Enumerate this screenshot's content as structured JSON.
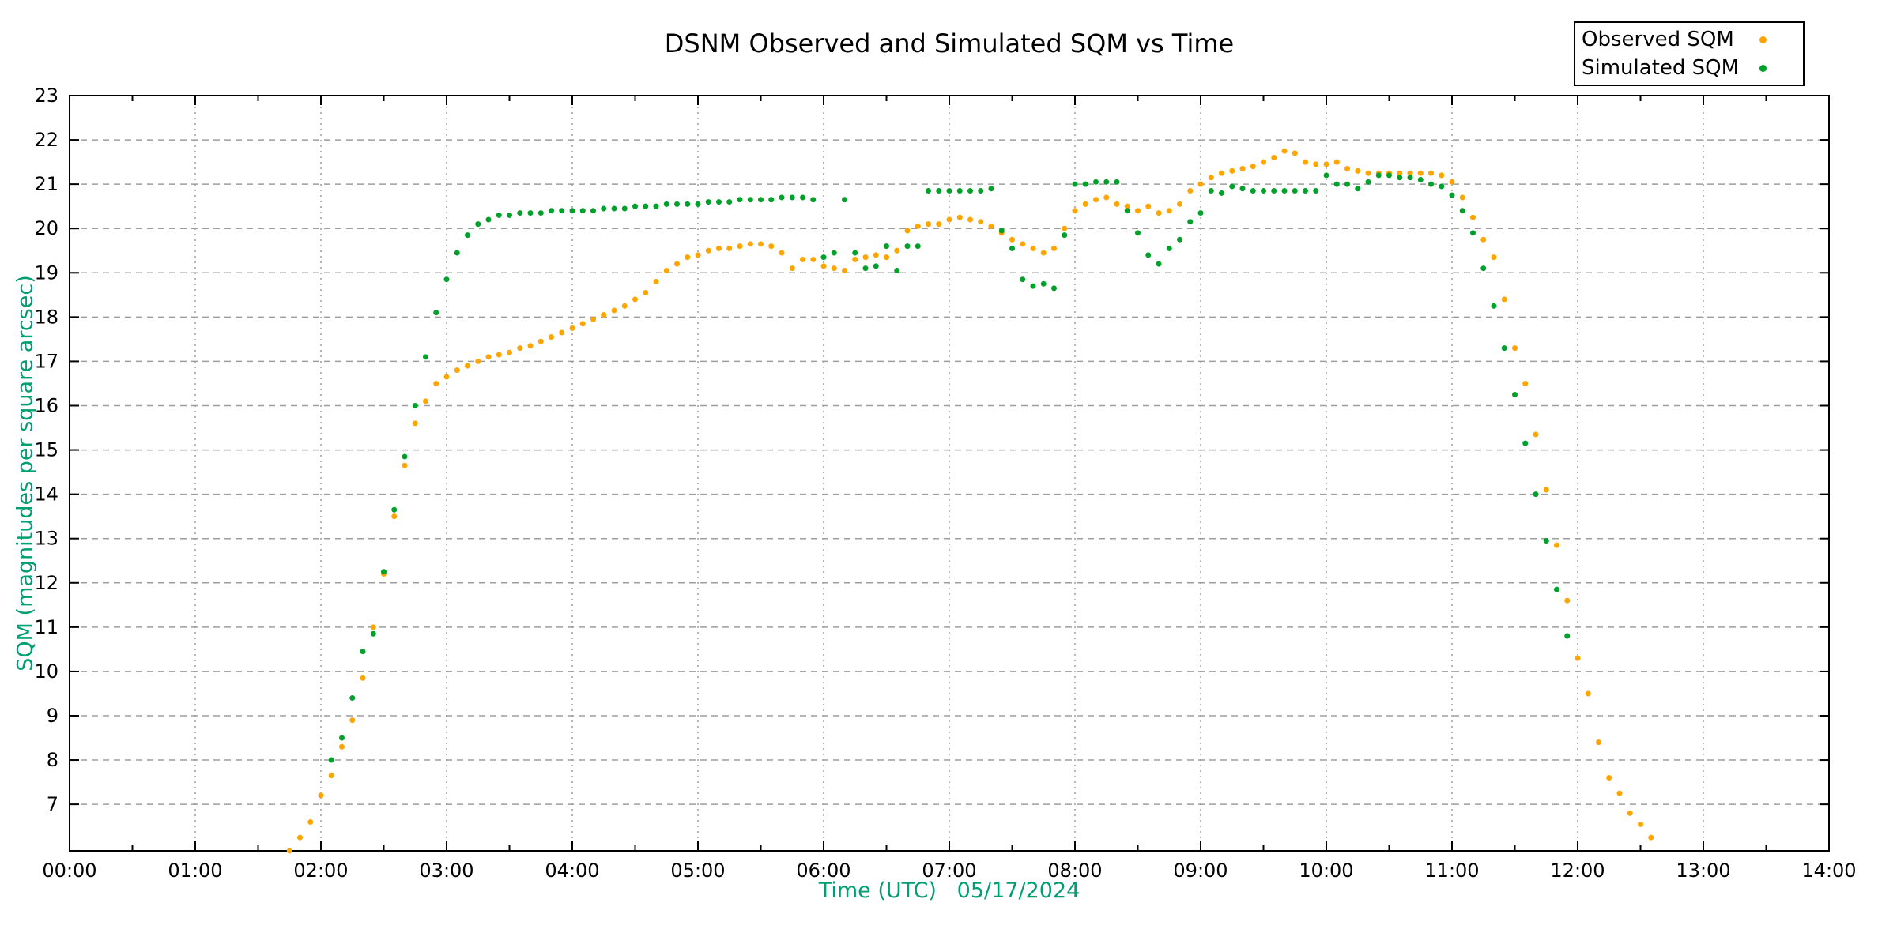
{
  "title": "DSNM Observed and Simulated SQM vs Time",
  "colors": {
    "observed": "#ffa500",
    "simulated": "#00a12b",
    "axis_label": "#009e73",
    "grid": "#9e9e9e",
    "border": "#000000",
    "background": "#ffffff"
  },
  "legend": {
    "entries": [
      {
        "label": "Observed SQM",
        "series": "observed"
      },
      {
        "label": "Simulated SQM",
        "series": "simulated"
      }
    ]
  },
  "axes": {
    "x": {
      "label": "Time (UTC)   05/17/2024",
      "tick_labels": [
        "00:00",
        "01:00",
        "02:00",
        "03:00",
        "04:00",
        "05:00",
        "06:00",
        "07:00",
        "08:00",
        "09:00",
        "10:00",
        "11:00",
        "12:00",
        "13:00",
        "14:00"
      ],
      "minor_tick_every_minutes": 30
    },
    "y": {
      "label": "SQM (magnitudes per square arcsec)",
      "ticks": [
        7,
        8,
        9,
        10,
        11,
        12,
        13,
        14,
        15,
        16,
        17,
        18,
        19,
        20,
        21,
        22,
        23
      ]
    }
  },
  "chart_data": {
    "type": "scatter",
    "title": "DSNM Observed and Simulated SQM vs Time",
    "xlabel": "Time (UTC)   05/17/2024",
    "ylabel": "SQM (magnitudes per square arcsec)",
    "xlim_hours": [
      0,
      14
    ],
    "ylim": [
      5.95,
      23
    ],
    "grid": true,
    "legend_position": "top-right-outside",
    "series": [
      {
        "name": "Observed SQM",
        "key": "observed",
        "color": "#ffa500",
        "marker": "dot",
        "points": [
          [
            "01:45",
            5.95
          ],
          [
            "01:50",
            6.25
          ],
          [
            "01:55",
            6.6
          ],
          [
            "02:00",
            7.2
          ],
          [
            "02:05",
            7.65
          ],
          [
            "02:10",
            8.3
          ],
          [
            "02:15",
            8.9
          ],
          [
            "02:20",
            9.85
          ],
          [
            "02:25",
            11.0
          ],
          [
            "02:30",
            12.2
          ],
          [
            "02:35",
            13.5
          ],
          [
            "02:40",
            14.65
          ],
          [
            "02:45",
            15.6
          ],
          [
            "02:50",
            16.1
          ],
          [
            "02:55",
            16.5
          ],
          [
            "03:00",
            16.65
          ],
          [
            "03:05",
            16.8
          ],
          [
            "03:10",
            16.9
          ],
          [
            "03:15",
            17.0
          ],
          [
            "03:20",
            17.1
          ],
          [
            "03:25",
            17.15
          ],
          [
            "03:30",
            17.2
          ],
          [
            "03:35",
            17.3
          ],
          [
            "03:40",
            17.35
          ],
          [
            "03:45",
            17.45
          ],
          [
            "03:50",
            17.55
          ],
          [
            "03:55",
            17.65
          ],
          [
            "04:00",
            17.75
          ],
          [
            "04:05",
            17.85
          ],
          [
            "04:10",
            17.95
          ],
          [
            "04:15",
            18.05
          ],
          [
            "04:20",
            18.15
          ],
          [
            "04:25",
            18.25
          ],
          [
            "04:30",
            18.4
          ],
          [
            "04:35",
            18.55
          ],
          [
            "04:40",
            18.8
          ],
          [
            "04:45",
            19.05
          ],
          [
            "04:50",
            19.2
          ],
          [
            "04:55",
            19.35
          ],
          [
            "05:00",
            19.4
          ],
          [
            "05:05",
            19.5
          ],
          [
            "05:10",
            19.55
          ],
          [
            "05:15",
            19.55
          ],
          [
            "05:20",
            19.6
          ],
          [
            "05:25",
            19.65
          ],
          [
            "05:30",
            19.65
          ],
          [
            "05:35",
            19.6
          ],
          [
            "05:40",
            19.45
          ],
          [
            "05:45",
            19.1
          ],
          [
            "05:50",
            19.3
          ],
          [
            "05:55",
            19.3
          ],
          [
            "06:00",
            19.15
          ],
          [
            "06:05",
            19.1
          ],
          [
            "06:10",
            19.05
          ],
          [
            "06:15",
            19.3
          ],
          [
            "06:20",
            19.35
          ],
          [
            "06:25",
            19.4
          ],
          [
            "06:30",
            19.35
          ],
          [
            "06:35",
            19.5
          ],
          [
            "06:40",
            19.95
          ],
          [
            "06:45",
            20.05
          ],
          [
            "06:50",
            20.1
          ],
          [
            "06:55",
            20.1
          ],
          [
            "07:00",
            20.2
          ],
          [
            "07:05",
            20.25
          ],
          [
            "07:10",
            20.2
          ],
          [
            "07:15",
            20.15
          ],
          [
            "07:20",
            20.05
          ],
          [
            "07:25",
            19.9
          ],
          [
            "07:30",
            19.75
          ],
          [
            "07:35",
            19.65
          ],
          [
            "07:40",
            19.55
          ],
          [
            "07:45",
            19.45
          ],
          [
            "07:50",
            19.55
          ],
          [
            "07:55",
            20.0
          ],
          [
            "08:00",
            20.4
          ],
          [
            "08:05",
            20.55
          ],
          [
            "08:10",
            20.65
          ],
          [
            "08:15",
            20.7
          ],
          [
            "08:20",
            20.55
          ],
          [
            "08:25",
            20.5
          ],
          [
            "08:30",
            20.4
          ],
          [
            "08:35",
            20.5
          ],
          [
            "08:40",
            20.35
          ],
          [
            "08:45",
            20.4
          ],
          [
            "08:50",
            20.55
          ],
          [
            "08:55",
            20.85
          ],
          [
            "09:00",
            21.0
          ],
          [
            "09:05",
            21.15
          ],
          [
            "09:10",
            21.25
          ],
          [
            "09:15",
            21.3
          ],
          [
            "09:20",
            21.35
          ],
          [
            "09:25",
            21.4
          ],
          [
            "09:30",
            21.5
          ],
          [
            "09:35",
            21.6
          ],
          [
            "09:40",
            21.75
          ],
          [
            "09:45",
            21.7
          ],
          [
            "09:50",
            21.5
          ],
          [
            "09:55",
            21.45
          ],
          [
            "10:00",
            21.45
          ],
          [
            "10:05",
            21.5
          ],
          [
            "10:10",
            21.35
          ],
          [
            "10:15",
            21.3
          ],
          [
            "10:20",
            21.25
          ],
          [
            "10:25",
            21.25
          ],
          [
            "10:30",
            21.25
          ],
          [
            "10:35",
            21.25
          ],
          [
            "10:40",
            21.25
          ],
          [
            "10:45",
            21.25
          ],
          [
            "10:50",
            21.25
          ],
          [
            "10:55",
            21.2
          ],
          [
            "11:00",
            21.05
          ],
          [
            "11:05",
            20.7
          ],
          [
            "11:10",
            20.25
          ],
          [
            "11:15",
            19.75
          ],
          [
            "11:20",
            19.35
          ],
          [
            "11:25",
            18.4
          ],
          [
            "11:30",
            17.3
          ],
          [
            "11:35",
            16.5
          ],
          [
            "11:40",
            15.35
          ],
          [
            "11:45",
            14.1
          ],
          [
            "11:50",
            12.85
          ],
          [
            "11:55",
            11.6
          ],
          [
            "12:00",
            10.3
          ],
          [
            "12:05",
            9.5
          ],
          [
            "12:10",
            8.4
          ],
          [
            "12:15",
            7.6
          ],
          [
            "12:20",
            7.25
          ],
          [
            "12:25",
            6.8
          ],
          [
            "12:30",
            6.55
          ],
          [
            "12:35",
            6.25
          ]
        ]
      },
      {
        "name": "Simulated SQM",
        "key": "simulated",
        "color": "#00a12b",
        "marker": "dot",
        "points": [
          [
            "02:05",
            8.0
          ],
          [
            "02:10",
            8.5
          ],
          [
            "02:15",
            9.4
          ],
          [
            "02:20",
            10.45
          ],
          [
            "02:25",
            10.85
          ],
          [
            "02:30",
            12.25
          ],
          [
            "02:35",
            13.65
          ],
          [
            "02:40",
            14.85
          ],
          [
            "02:45",
            16.0
          ],
          [
            "02:50",
            17.1
          ],
          [
            "02:55",
            18.1
          ],
          [
            "03:00",
            18.85
          ],
          [
            "03:05",
            19.45
          ],
          [
            "03:10",
            19.85
          ],
          [
            "03:15",
            20.1
          ],
          [
            "03:20",
            20.2
          ],
          [
            "03:25",
            20.3
          ],
          [
            "03:30",
            20.3
          ],
          [
            "03:35",
            20.35
          ],
          [
            "03:40",
            20.35
          ],
          [
            "03:45",
            20.35
          ],
          [
            "03:50",
            20.4
          ],
          [
            "03:55",
            20.4
          ],
          [
            "04:00",
            20.4
          ],
          [
            "04:05",
            20.4
          ],
          [
            "04:10",
            20.4
          ],
          [
            "04:15",
            20.45
          ],
          [
            "04:20",
            20.45
          ],
          [
            "04:25",
            20.45
          ],
          [
            "04:30",
            20.5
          ],
          [
            "04:35",
            20.5
          ],
          [
            "04:40",
            20.5
          ],
          [
            "04:45",
            20.55
          ],
          [
            "04:50",
            20.55
          ],
          [
            "04:55",
            20.55
          ],
          [
            "05:00",
            20.55
          ],
          [
            "05:05",
            20.6
          ],
          [
            "05:10",
            20.6
          ],
          [
            "05:15",
            20.6
          ],
          [
            "05:20",
            20.65
          ],
          [
            "05:25",
            20.65
          ],
          [
            "05:30",
            20.65
          ],
          [
            "05:35",
            20.65
          ],
          [
            "05:40",
            20.7
          ],
          [
            "05:45",
            20.7
          ],
          [
            "05:50",
            20.7
          ],
          [
            "05:55",
            20.65
          ],
          [
            "06:00",
            19.35
          ],
          [
            "06:05",
            19.45
          ],
          [
            "06:10",
            20.65
          ],
          [
            "06:15",
            19.45
          ],
          [
            "06:20",
            19.1
          ],
          [
            "06:25",
            19.15
          ],
          [
            "06:30",
            19.6
          ],
          [
            "06:35",
            19.05
          ],
          [
            "06:40",
            19.6
          ],
          [
            "06:45",
            19.6
          ],
          [
            "06:50",
            20.85
          ],
          [
            "06:55",
            20.85
          ],
          [
            "07:00",
            20.85
          ],
          [
            "07:05",
            20.85
          ],
          [
            "07:10",
            20.85
          ],
          [
            "07:15",
            20.85
          ],
          [
            "07:20",
            20.9
          ],
          [
            "07:25",
            19.95
          ],
          [
            "07:30",
            19.55
          ],
          [
            "07:35",
            18.85
          ],
          [
            "07:40",
            18.7
          ],
          [
            "07:45",
            18.75
          ],
          [
            "07:50",
            18.65
          ],
          [
            "07:55",
            19.85
          ],
          [
            "08:00",
            21.0
          ],
          [
            "08:05",
            21.0
          ],
          [
            "08:10",
            21.05
          ],
          [
            "08:15",
            21.05
          ],
          [
            "08:20",
            21.05
          ],
          [
            "08:25",
            20.4
          ],
          [
            "08:30",
            19.9
          ],
          [
            "08:35",
            19.4
          ],
          [
            "08:40",
            19.2
          ],
          [
            "08:45",
            19.55
          ],
          [
            "08:50",
            19.75
          ],
          [
            "08:55",
            20.15
          ],
          [
            "09:00",
            20.35
          ],
          [
            "09:05",
            20.85
          ],
          [
            "09:10",
            20.8
          ],
          [
            "09:15",
            20.95
          ],
          [
            "09:20",
            20.9
          ],
          [
            "09:25",
            20.85
          ],
          [
            "09:30",
            20.85
          ],
          [
            "09:35",
            20.85
          ],
          [
            "09:40",
            20.85
          ],
          [
            "09:45",
            20.85
          ],
          [
            "09:50",
            20.85
          ],
          [
            "09:55",
            20.85
          ],
          [
            "10:00",
            21.2
          ],
          [
            "10:05",
            21.0
          ],
          [
            "10:10",
            21.0
          ],
          [
            "10:15",
            20.9
          ],
          [
            "10:20",
            21.05
          ],
          [
            "10:25",
            21.2
          ],
          [
            "10:30",
            21.2
          ],
          [
            "10:35",
            21.15
          ],
          [
            "10:40",
            21.15
          ],
          [
            "10:45",
            21.1
          ],
          [
            "10:50",
            21.0
          ],
          [
            "10:55",
            20.95
          ],
          [
            "11:00",
            20.75
          ],
          [
            "11:05",
            20.4
          ],
          [
            "11:10",
            19.9
          ],
          [
            "11:15",
            19.1
          ],
          [
            "11:20",
            18.25
          ],
          [
            "11:25",
            17.3
          ],
          [
            "11:30",
            16.25
          ],
          [
            "11:35",
            15.15
          ],
          [
            "11:40",
            14.0
          ],
          [
            "11:45",
            12.95
          ],
          [
            "11:50",
            11.85
          ],
          [
            "11:55",
            10.8
          ]
        ]
      }
    ]
  }
}
